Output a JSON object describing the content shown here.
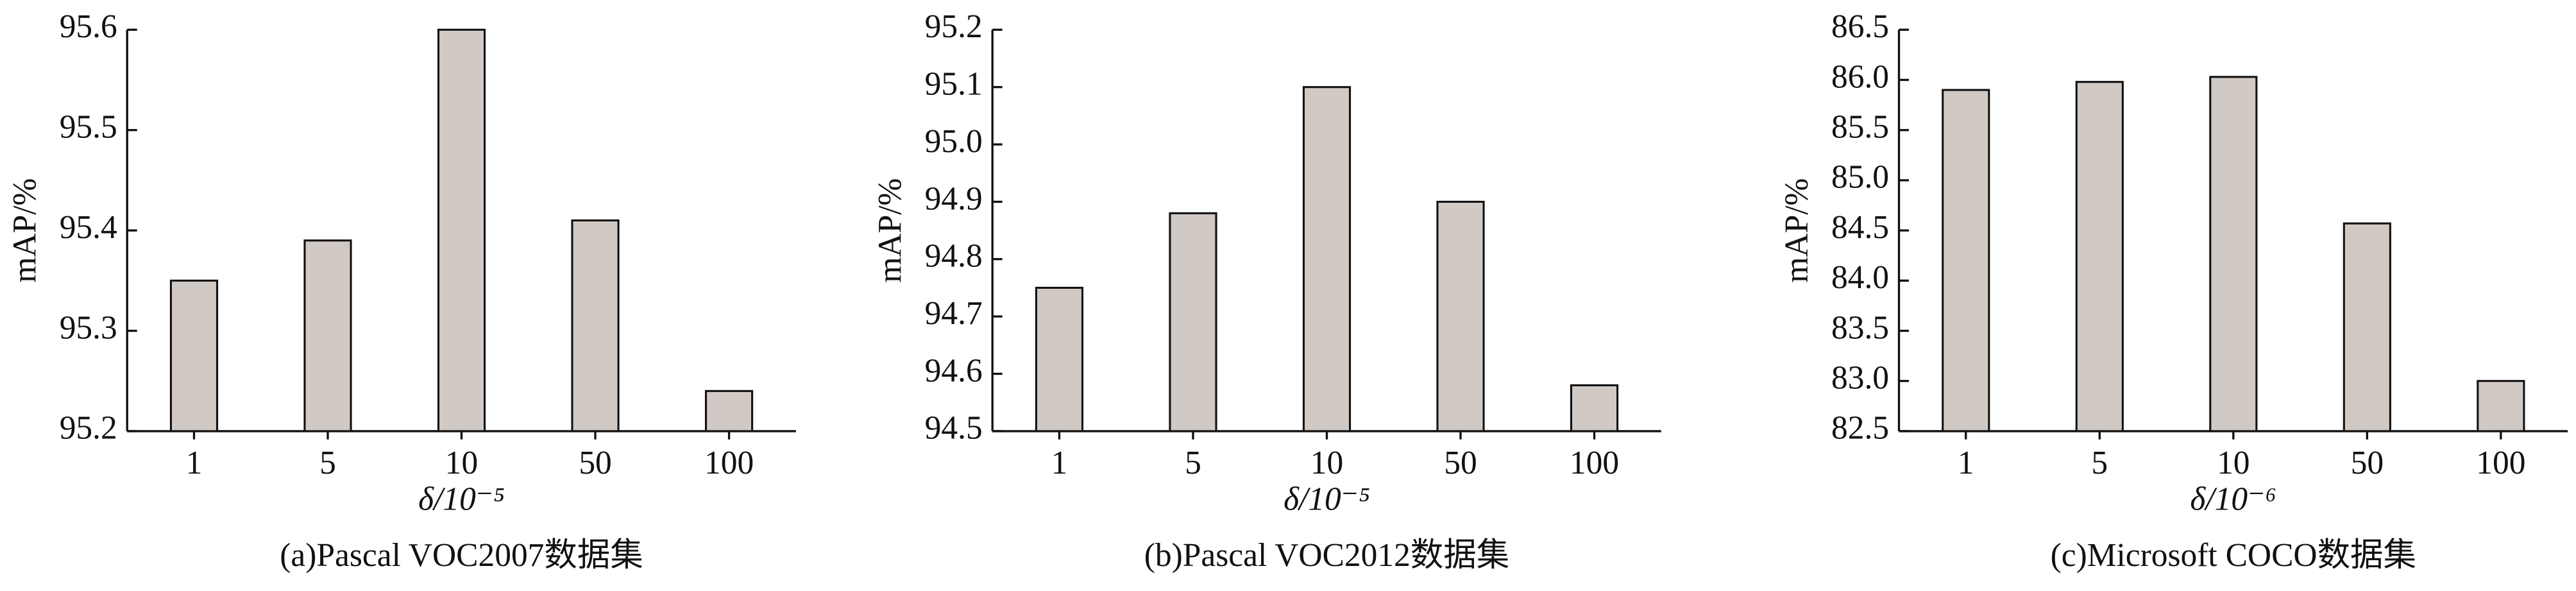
{
  "chart_data": [
    {
      "type": "bar",
      "caption": "(a)Pascal VOC2007数据集",
      "xlabel": "δ/10⁻⁵",
      "ylabel": "mAP/%",
      "categories": [
        "1",
        "5",
        "10",
        "50",
        "100"
      ],
      "values": [
        95.35,
        95.39,
        95.6,
        95.41,
        95.24
      ],
      "color": "#d1c9c4",
      "ylim": [
        95.2,
        95.6
      ],
      "yticks": [
        95.2,
        95.3,
        95.4,
        95.5,
        95.6
      ]
    },
    {
      "type": "bar",
      "caption": "(b)Pascal VOC2012数据集",
      "xlabel": "δ/10⁻⁵",
      "ylabel": "mAP/%",
      "categories": [
        "1",
        "5",
        "10",
        "50",
        "100"
      ],
      "values": [
        94.75,
        94.88,
        95.1,
        94.9,
        94.58
      ],
      "color": "#d1c9c4",
      "ylim": [
        94.5,
        95.2
      ],
      "yticks": [
        94.5,
        94.6,
        94.7,
        94.8,
        94.9,
        {
          "value": 95,
          "label": "95.0"
        },
        95.1,
        95.2
      ]
    },
    {
      "type": "bar",
      "caption": "(c)Microsoft COCO数据集",
      "xlabel": "δ/10⁻⁶",
      "ylabel": "mAP/%",
      "categories": [
        "1",
        "5",
        "10",
        "50",
        "100"
      ],
      "values": [
        85.9,
        85.98,
        86.03,
        84.57,
        83.0
      ],
      "color": "#d1c9c4",
      "ylim": [
        82.5,
        86.5
      ],
      "yticks": [
        82.5,
        {
          "value": 83,
          "label": "83.0"
        },
        83.5,
        {
          "value": 84,
          "label": "84.0"
        },
        84.5,
        {
          "value": 85,
          "label": "85.0"
        },
        85.5,
        {
          "value": 86,
          "label": "86.0"
        },
        86.5
      ]
    }
  ]
}
